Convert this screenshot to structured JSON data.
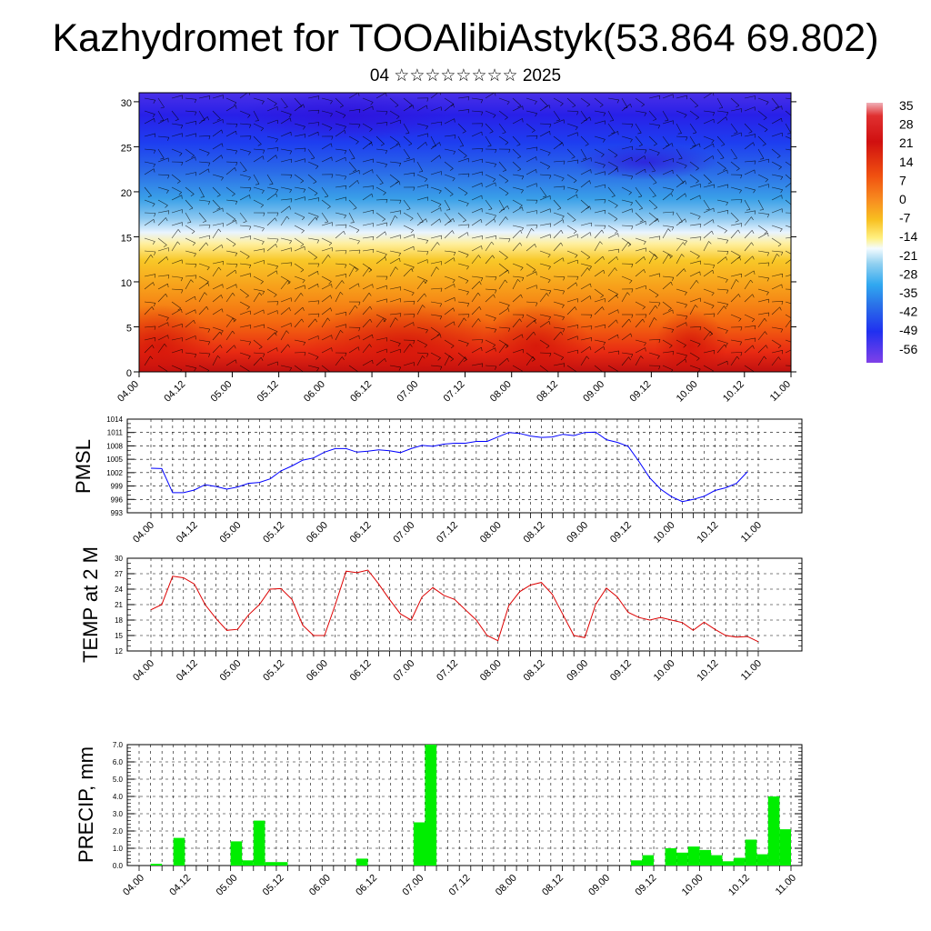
{
  "title": "Kazhydromet for TOOAlibiAstyk(53.864 69.802)",
  "subtitle": "04 ☆☆☆☆☆☆☆☆ 2025",
  "time_labels": [
    "04.00",
    "04.12",
    "05.00",
    "05.12",
    "06.00",
    "06.12",
    "07.00",
    "07.12",
    "08.00",
    "08.12",
    "09.00",
    "09.12",
    "10.00",
    "10.12",
    "11.00"
  ],
  "chart_data": [
    {
      "type": "heatmap",
      "name_hint": "vertical cross-section temperature with wind barbs",
      "y_ticks": [
        0,
        5,
        10,
        15,
        20,
        25,
        30
      ],
      "ylim": [
        0,
        31
      ],
      "colorbar_labels": [
        "35",
        "28",
        "21",
        "14",
        "7",
        "0",
        "-7",
        "-14",
        "-21",
        "-28",
        "-35",
        "-42",
        "-49",
        "-56"
      ],
      "colorbar_range": [
        -60,
        38
      ]
    },
    {
      "type": "line",
      "ylabel": "PMSL",
      "y_ticks": [
        993,
        996,
        999,
        1002,
        1005,
        1008,
        1011,
        1014
      ],
      "ylim": [
        993,
        1014
      ],
      "color": "#0000ff",
      "values": [
        1003,
        1002.9,
        997.5,
        997.5,
        998.1,
        999.3,
        998.9,
        998.3,
        998.8,
        999.6,
        999.8,
        1000.6,
        1002.4,
        1003.5,
        1004.8,
        1005.3,
        1006.6,
        1007.4,
        1007.4,
        1006.6,
        1006.8,
        1007.1,
        1006.9,
        1006.5,
        1007.4,
        1008.1,
        1007.9,
        1008.4,
        1008.6,
        1008.6,
        1009,
        1009,
        1010,
        1011,
        1010.8,
        1010.2,
        1009.9,
        1010,
        1010.6,
        1010.3,
        1011,
        1011.1,
        1009.4,
        1008.8,
        1007.9,
        1004.5,
        1000.8,
        998.3,
        996.6,
        995.5,
        996,
        996.7,
        998,
        998.6,
        999.6,
        1002.2
      ]
    },
    {
      "type": "line",
      "ylabel": "TEMP at 2 M",
      "y_ticks": [
        12,
        15,
        18,
        21,
        24,
        27,
        30
      ],
      "ylim": [
        12,
        30
      ],
      "color": "#dd0000",
      "values": [
        20,
        21,
        26.5,
        26.2,
        25,
        21,
        18.3,
        16,
        16.2,
        19,
        21,
        24,
        24.1,
        22,
        17,
        15,
        15,
        21,
        27.5,
        27.2,
        27.7,
        25,
        22,
        19.2,
        18,
        22.5,
        24.3,
        22.8,
        22,
        20,
        18,
        15,
        14,
        20.8,
        23.5,
        24.8,
        25.3,
        23,
        19,
        15,
        14.6,
        21,
        24.2,
        22.5,
        19.5,
        18.5,
        18,
        18.5,
        18,
        17.5,
        16,
        17.6,
        16.2,
        15,
        14.7,
        14.8,
        13.8
      ]
    },
    {
      "type": "bar",
      "ylabel": "PRECIP, mm",
      "y_ticks": [
        "0.0",
        "1.0",
        "2.0",
        "3.0",
        "4.0",
        "5.0",
        "6.0",
        "7.0"
      ],
      "ylim": [
        0,
        7
      ],
      "color": "#00ee00",
      "values": [
        0,
        0.1,
        0,
        1.6,
        0,
        0,
        0,
        0,
        1.4,
        0.3,
        2.6,
        0.2,
        0.2,
        0,
        0,
        0,
        0,
        0,
        0,
        0.4,
        0,
        0,
        0,
        0,
        2.5,
        7.0,
        0,
        0,
        0,
        0,
        0,
        0,
        0,
        0,
        0,
        0,
        0,
        0,
        0,
        0,
        0,
        0,
        0,
        0.3,
        0.6,
        0,
        1.0,
        0.75,
        1.1,
        0.9,
        0.6,
        0.25,
        0.45,
        1.5,
        0.65,
        4.0,
        2.1
      ]
    }
  ]
}
